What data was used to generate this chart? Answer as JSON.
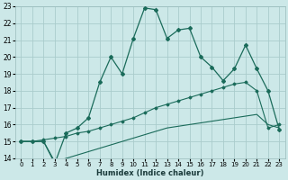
{
  "xlabel": "Humidex (Indice chaleur)",
  "bg_color": "#cce8e8",
  "grid_color": "#aacccc",
  "line_color": "#1a6b5a",
  "xlim": [
    -0.5,
    23.5
  ],
  "ylim": [
    14,
    23
  ],
  "xticks": [
    0,
    1,
    2,
    3,
    4,
    5,
    6,
    7,
    8,
    9,
    10,
    11,
    12,
    13,
    14,
    15,
    16,
    17,
    18,
    19,
    20,
    21,
    22,
    23
  ],
  "yticks": [
    14,
    15,
    16,
    17,
    18,
    19,
    20,
    21,
    22,
    23
  ],
  "line1_x": [
    0,
    1,
    2,
    3,
    4,
    5,
    6,
    7,
    8,
    9,
    10,
    11,
    12,
    13,
    14,
    15,
    16,
    17,
    18,
    19,
    20,
    21,
    22,
    23
  ],
  "line1_y": [
    15.0,
    15.0,
    15.0,
    13.7,
    15.5,
    15.8,
    16.4,
    18.5,
    20.0,
    19.0,
    21.1,
    22.9,
    22.8,
    21.1,
    21.6,
    21.7,
    20.0,
    19.4,
    18.6,
    19.3,
    20.7,
    19.3,
    18.0,
    15.7
  ],
  "line2_x": [
    0,
    1,
    2,
    3,
    4,
    5,
    6,
    7,
    8,
    9,
    10,
    11,
    12,
    13,
    14,
    15,
    16,
    17,
    18,
    19,
    20,
    21,
    22,
    23
  ],
  "line2_y": [
    15.0,
    15.0,
    15.1,
    15.2,
    15.3,
    15.5,
    15.6,
    15.8,
    16.0,
    16.2,
    16.4,
    16.7,
    17.0,
    17.2,
    17.4,
    17.6,
    17.8,
    18.0,
    18.2,
    18.4,
    18.5,
    18.0,
    15.8,
    16.0
  ],
  "line3_x": [
    0,
    1,
    2,
    3,
    4,
    5,
    6,
    7,
    8,
    9,
    10,
    11,
    12,
    13,
    14,
    15,
    16,
    17,
    18,
    19,
    20,
    21,
    22,
    23
  ],
  "line3_y": [
    15.0,
    15.0,
    15.0,
    13.8,
    14.0,
    14.2,
    14.4,
    14.6,
    14.8,
    15.0,
    15.2,
    15.4,
    15.6,
    15.8,
    15.9,
    16.0,
    16.1,
    16.2,
    16.3,
    16.4,
    16.5,
    16.6,
    16.0,
    15.8
  ]
}
